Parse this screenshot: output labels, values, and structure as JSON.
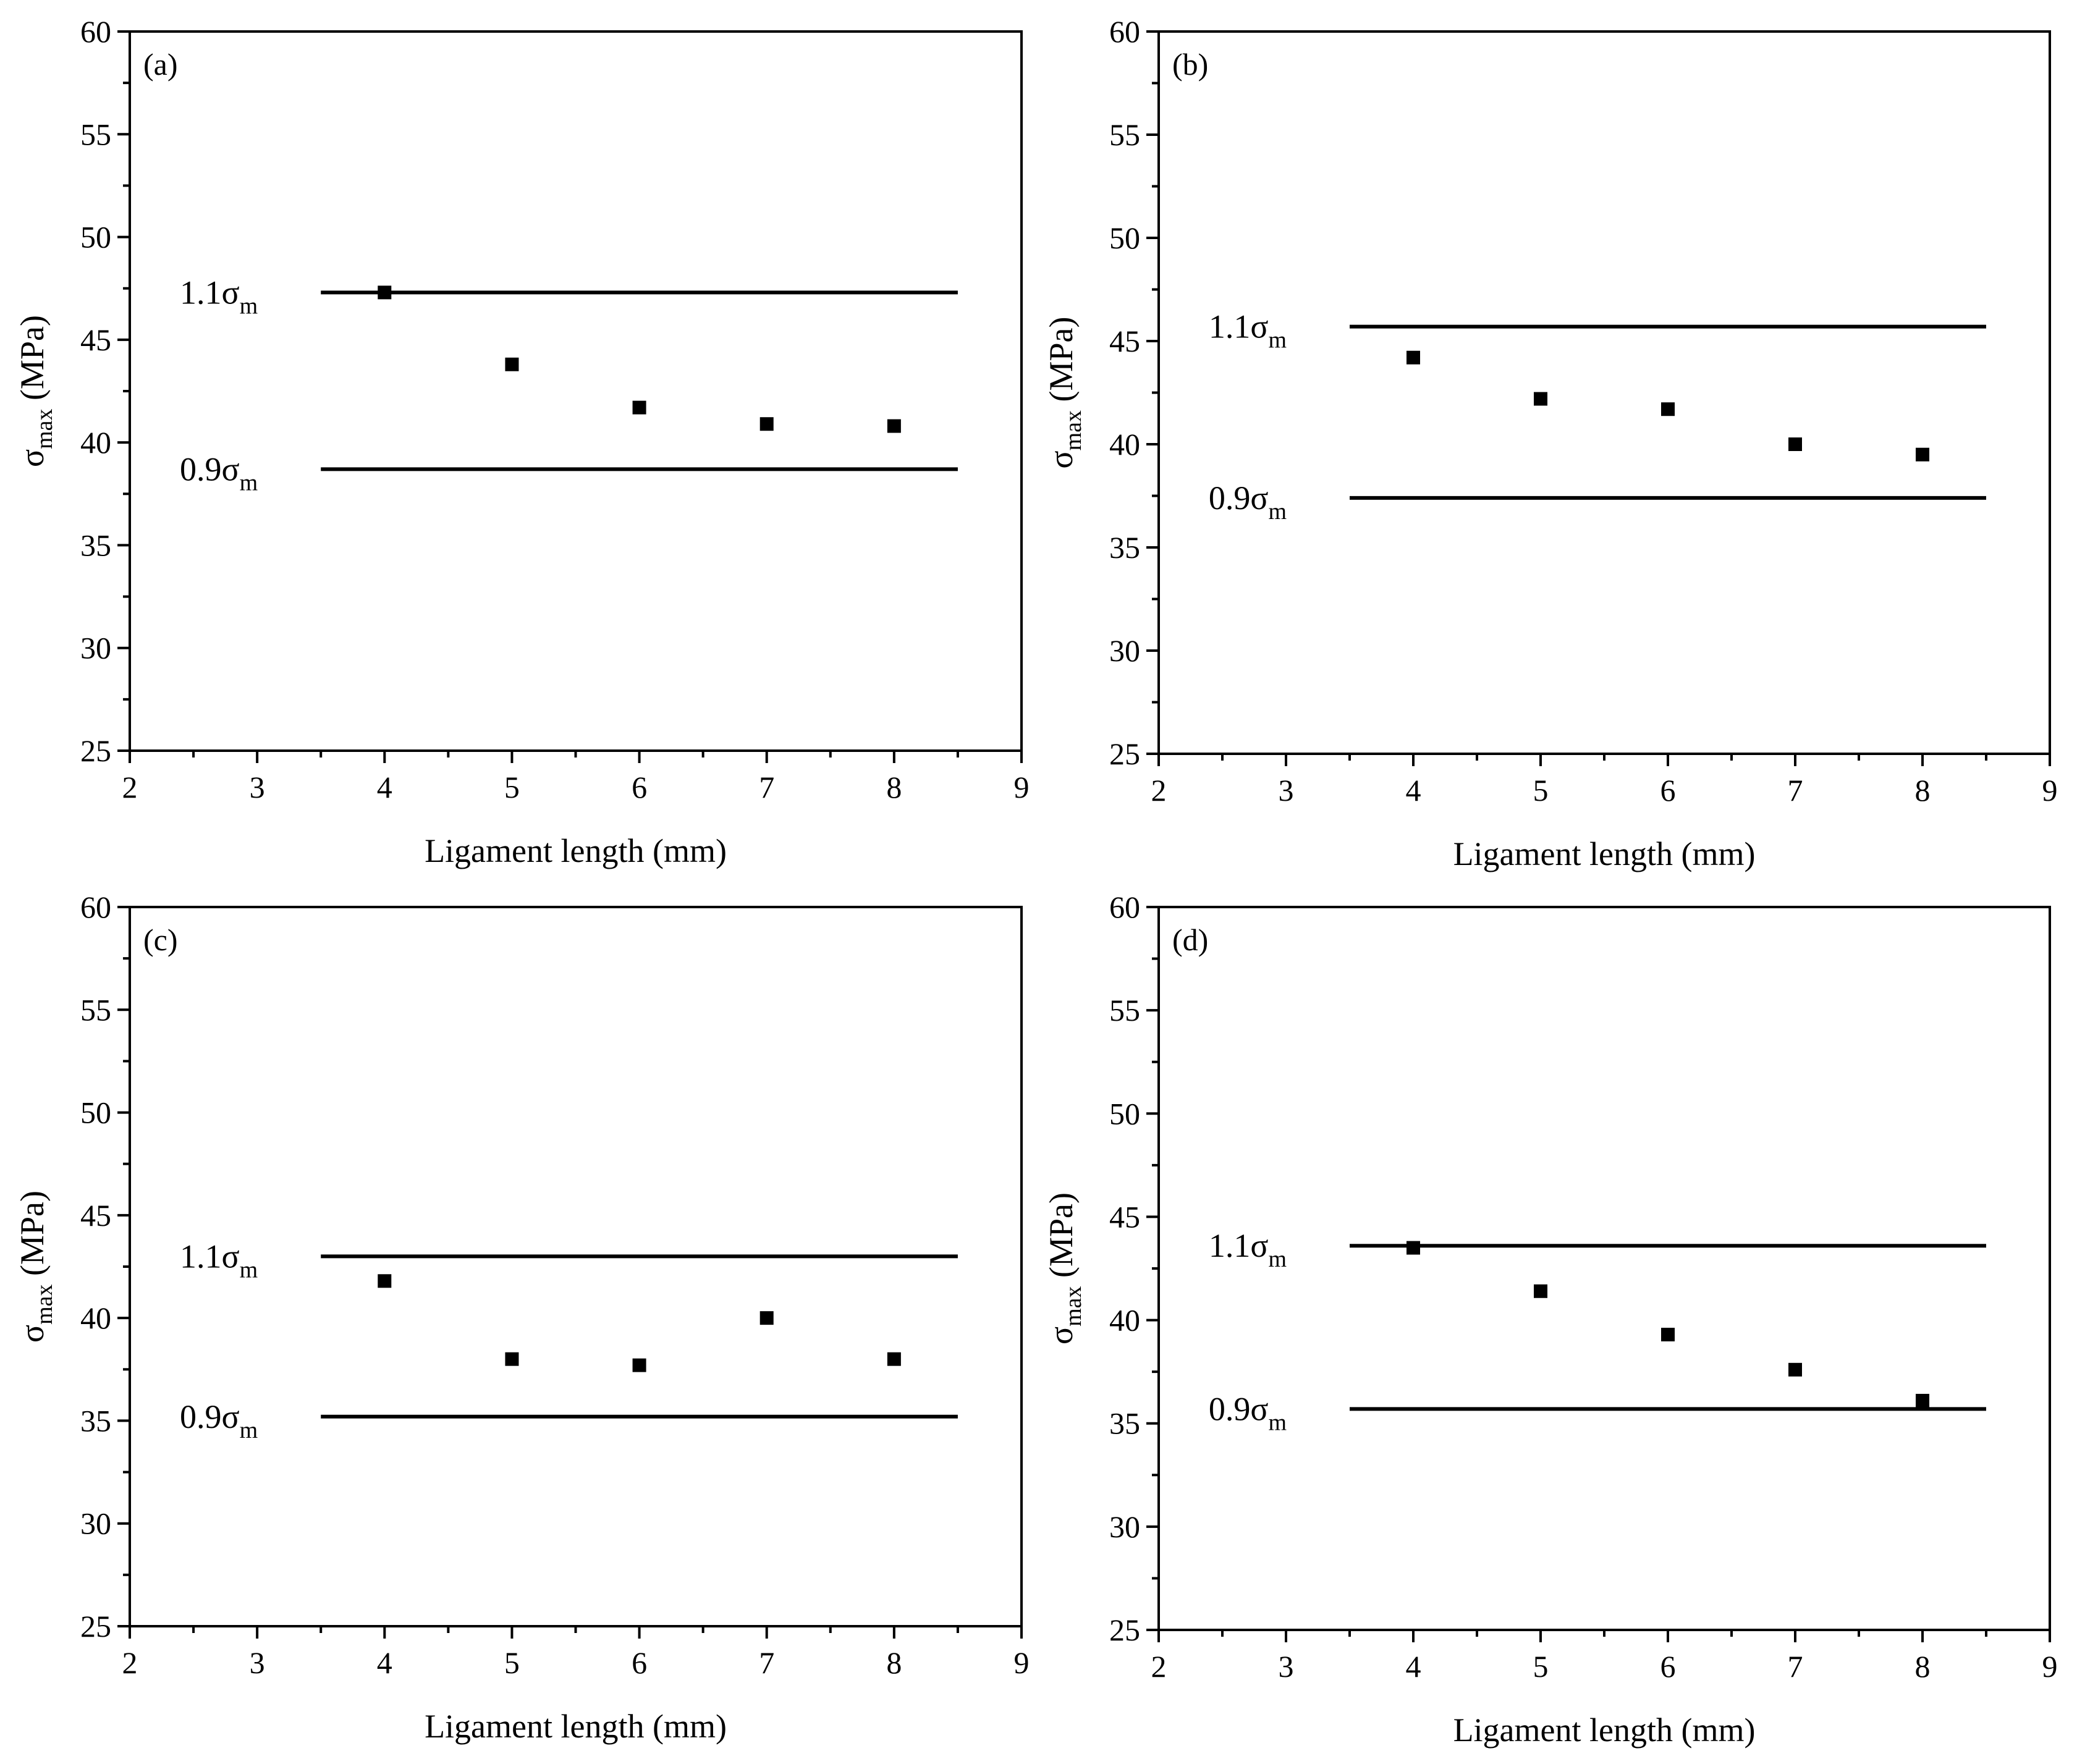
{
  "chart_data": [
    {
      "type": "scatter",
      "panel_label": "(a)",
      "x": [
        4,
        5,
        6,
        7,
        8
      ],
      "y": [
        47.3,
        43.8,
        41.7,
        40.9,
        40.8
      ],
      "xlabel": "Ligament length (mm)",
      "ylabel_symbol": "σ",
      "ylabel_sub": "max",
      "ylabel_unit": " (MPa)",
      "xlim": [
        2,
        9
      ],
      "ylim": [
        25,
        60
      ],
      "xticks": [
        2,
        3,
        4,
        5,
        6,
        7,
        8,
        9
      ],
      "yticks": [
        25,
        30,
        35,
        40,
        45,
        50,
        55,
        60
      ],
      "reference_lines": [
        {
          "label_prefix": "1.1σ",
          "label_sub": "m",
          "y": 47.3,
          "x_start": 3.5,
          "x_end": 8.5
        },
        {
          "label_prefix": "0.9σ",
          "label_sub": "m",
          "y": 38.7,
          "x_start": 3.5,
          "x_end": 8.5
        }
      ]
    },
    {
      "type": "scatter",
      "panel_label": "(b)",
      "x": [
        4,
        5,
        6,
        7,
        8
      ],
      "y": [
        44.2,
        42.2,
        41.7,
        40.0,
        39.5
      ],
      "xlabel": "Ligament length (mm)",
      "ylabel_symbol": "σ",
      "ylabel_sub": "max",
      "ylabel_unit": " (MPa)",
      "xlim": [
        2,
        9
      ],
      "ylim": [
        25,
        60
      ],
      "xticks": [
        2,
        3,
        4,
        5,
        6,
        7,
        8,
        9
      ],
      "yticks": [
        25,
        30,
        35,
        40,
        45,
        50,
        55,
        60
      ],
      "reference_lines": [
        {
          "label_prefix": "1.1σ",
          "label_sub": "m",
          "y": 45.7,
          "x_start": 3.5,
          "x_end": 8.5
        },
        {
          "label_prefix": "0.9σ",
          "label_sub": "m",
          "y": 37.4,
          "x_start": 3.5,
          "x_end": 8.5
        }
      ]
    },
    {
      "type": "scatter",
      "panel_label": "(c)",
      "x": [
        4,
        5,
        6,
        7,
        8
      ],
      "y": [
        41.8,
        38.0,
        37.7,
        40.0,
        38.0
      ],
      "xlabel": "Ligament length (mm)",
      "ylabel_symbol": "σ",
      "ylabel_sub": "max",
      "ylabel_unit": " (MPa)",
      "xlim": [
        2,
        9
      ],
      "ylim": [
        25,
        60
      ],
      "xticks": [
        2,
        3,
        4,
        5,
        6,
        7,
        8,
        9
      ],
      "yticks": [
        25,
        30,
        35,
        40,
        45,
        50,
        55,
        60
      ],
      "reference_lines": [
        {
          "label_prefix": "1.1σ",
          "label_sub": "m",
          "y": 43.0,
          "x_start": 3.5,
          "x_end": 8.5
        },
        {
          "label_prefix": "0.9σ",
          "label_sub": "m",
          "y": 35.2,
          "x_start": 3.5,
          "x_end": 8.5
        }
      ]
    },
    {
      "type": "scatter",
      "panel_label": "(d)",
      "x": [
        4,
        5,
        6,
        7,
        8
      ],
      "y": [
        43.5,
        41.4,
        39.3,
        37.6,
        36.1
      ],
      "xlabel": "Ligament length (mm)",
      "ylabel_symbol": "σ",
      "ylabel_sub": "max",
      "ylabel_unit": " (MPa)",
      "xlim": [
        2,
        9
      ],
      "ylim": [
        25,
        60
      ],
      "xticks": [
        2,
        3,
        4,
        5,
        6,
        7,
        8,
        9
      ],
      "yticks": [
        25,
        30,
        35,
        40,
        45,
        50,
        55,
        60
      ],
      "reference_lines": [
        {
          "label_prefix": "1.1σ",
          "label_sub": "m",
          "y": 43.6,
          "x_start": 3.5,
          "x_end": 8.5
        },
        {
          "label_prefix": "0.9σ",
          "label_sub": "m",
          "y": 35.7,
          "x_start": 3.5,
          "x_end": 8.5
        }
      ]
    }
  ]
}
